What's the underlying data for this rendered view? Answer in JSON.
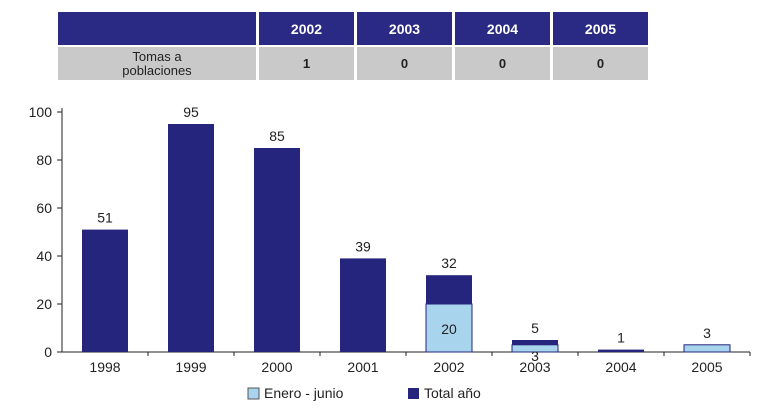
{
  "table": {
    "years": [
      "2002",
      "2003",
      "2004",
      "2005"
    ],
    "row_label_line1": "Tomas a",
    "row_label_line2": "poblaciones",
    "values": [
      "1",
      "0",
      "0",
      "0"
    ]
  },
  "colors": {
    "total": "#25257d",
    "enero": "#a8d4ee",
    "header": "#2a2a85",
    "cell": "#c9c9c9"
  },
  "chart_data": {
    "type": "bar",
    "categories": [
      "1998",
      "1999",
      "2000",
      "2001",
      "2002",
      "2003",
      "2004",
      "2005"
    ],
    "series": [
      {
        "name": "Total año",
        "values": [
          51,
          95,
          85,
          39,
          32,
          5,
          1,
          null
        ]
      },
      {
        "name": "Enero - junio",
        "values": [
          null,
          null,
          null,
          null,
          20,
          3,
          null,
          3
        ]
      }
    ],
    "ylim": [
      0,
      100
    ],
    "yticks": [
      0,
      20,
      40,
      60,
      80,
      100
    ],
    "legend": {
      "position": "bottom",
      "labels": [
        "Enero - junio",
        "Total año"
      ]
    },
    "grid": false
  }
}
